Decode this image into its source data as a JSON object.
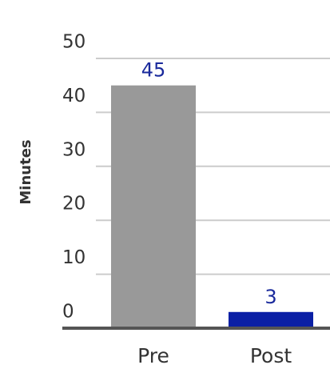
{
  "chart_data": {
    "type": "bar",
    "y_label": "Minutes",
    "categories": [
      "Pre",
      "Post"
    ],
    "values": [
      45,
      3
    ],
    "colors": [
      "#999999",
      "#0a1fa5"
    ],
    "ylim": [
      0,
      50
    ],
    "yticks": [
      0,
      10,
      20,
      30,
      40,
      50
    ],
    "grid": true
  }
}
